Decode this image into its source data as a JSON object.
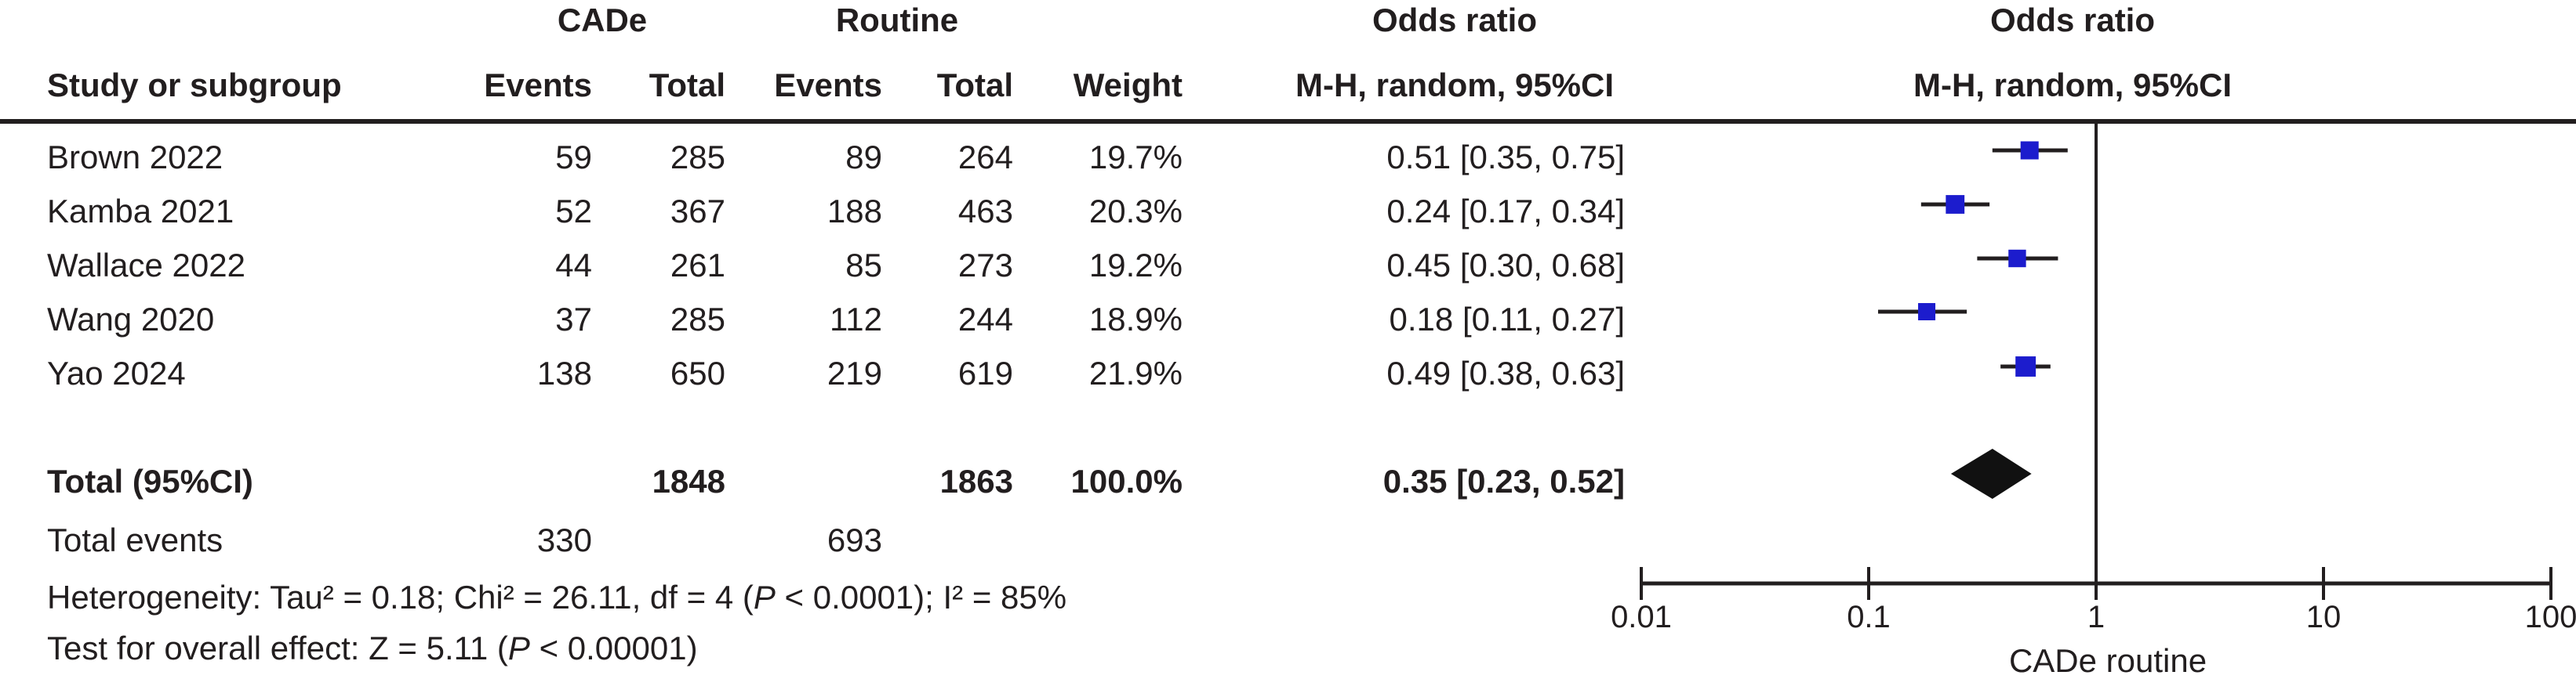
{
  "colors": {
    "marker_blue": "#1c1ccd",
    "line_black": "#221e1f",
    "diamond_black": "#111111",
    "background": "#ffffff"
  },
  "table": {
    "group_headers": {
      "cade": "CADe",
      "routine": "Routine",
      "odds_ratio_stat": "Odds ratio",
      "odds_ratio_plot": "Odds ratio"
    },
    "column_headers": {
      "study": "Study or subgroup",
      "events_cade": "Events",
      "total_cade": "Total",
      "events_routine": "Events",
      "total_routine": "Total",
      "weight": "Weight",
      "mh_stat": "M-H, random, 95%CI",
      "mh_plot": "M-H, random, 95%CI"
    },
    "total_events_row": {
      "label": "Total events",
      "cade": "330",
      "routine": "693"
    },
    "heterogeneity": {
      "pre": "Heterogeneity: Tau² = 0.18; Chi² = 26.11, df = 4 (",
      "p": "P",
      "post": " < 0.0001); I² = 85%"
    },
    "overall_effect": {
      "pre": "Test for overall effect: Z = 5.11 (",
      "p": "P",
      "post": " < 0.00001)"
    }
  },
  "chart_data": {
    "type": "forest",
    "x_scale": "log10",
    "x_ticks": [
      "0.01",
      "0.1",
      "1",
      "10",
      "100"
    ],
    "x_range": [
      0.01,
      100
    ],
    "null_line": 1,
    "x_axis_label": "CADe routine",
    "effect_measure": "Odds ratio, M-H, random, 95%CI",
    "studies": [
      {
        "name": "Brown 2022",
        "events_cade": "59",
        "total_cade": "285",
        "events_routine": "89",
        "total_routine": "264",
        "weight": "19.7%",
        "weight_pct": 19.7,
        "or": 0.51,
        "ci_low": 0.35,
        "ci_high": 0.75,
        "or_text": "0.51 [0.35, 0.75]"
      },
      {
        "name": "Kamba 2021",
        "events_cade": "52",
        "total_cade": "367",
        "events_routine": "188",
        "total_routine": "463",
        "weight": "20.3%",
        "weight_pct": 20.3,
        "or": 0.24,
        "ci_low": 0.17,
        "ci_high": 0.34,
        "or_text": "0.24 [0.17, 0.34]"
      },
      {
        "name": "Wallace 2022",
        "events_cade": "44",
        "total_cade": "261",
        "events_routine": "85",
        "total_routine": "273",
        "weight": "19.2%",
        "weight_pct": 19.2,
        "or": 0.45,
        "ci_low": 0.3,
        "ci_high": 0.68,
        "or_text": "0.45 [0.30, 0.68]"
      },
      {
        "name": "Wang 2020",
        "events_cade": "37",
        "total_cade": "285",
        "events_routine": "112",
        "total_routine": "244",
        "weight": "18.9%",
        "weight_pct": 18.9,
        "or": 0.18,
        "ci_low": 0.11,
        "ci_high": 0.27,
        "or_text": "0.18 [0.11, 0.27]"
      },
      {
        "name": "Yao 2024",
        "events_cade": "138",
        "total_cade": "650",
        "events_routine": "219",
        "total_routine": "619",
        "weight": "21.9%",
        "weight_pct": 21.9,
        "or": 0.49,
        "ci_low": 0.38,
        "ci_high": 0.63,
        "or_text": "0.49 [0.38, 0.63]"
      }
    ],
    "total": {
      "label": "Total (95%CI)",
      "total_cade": "1848",
      "total_routine": "1863",
      "weight": "100.0%",
      "or": 0.35,
      "ci_low": 0.23,
      "ci_high": 0.52,
      "or_text": "0.35 [0.23, 0.52]"
    }
  }
}
